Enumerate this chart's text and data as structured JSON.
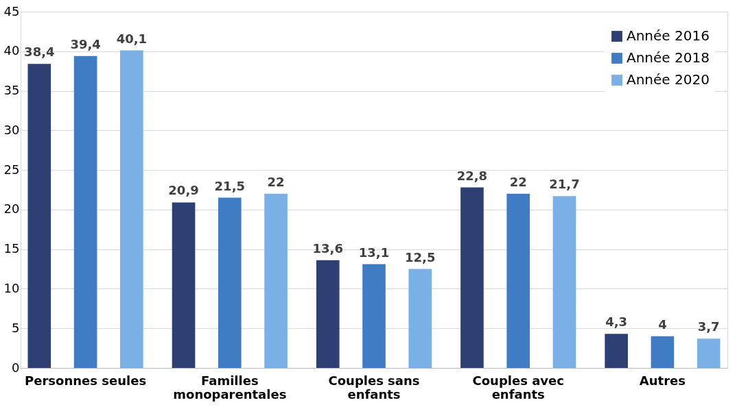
{
  "chart_data": {
    "type": "bar",
    "categories": [
      "Personnes seules",
      "Familles monoparentales",
      "Couples sans enfants",
      "Couples avec enfants",
      "Autres"
    ],
    "series": [
      {
        "name": "Année 2016",
        "color": "#2e3f73",
        "values": [
          38.4,
          20.9,
          13.6,
          22.8,
          4.3
        ],
        "value_labels": [
          "38,4",
          "20,9",
          "13,6",
          "22,8",
          "4,3"
        ]
      },
      {
        "name": "Année 2018",
        "color": "#3f7cc4",
        "values": [
          39.4,
          21.5,
          13.1,
          22,
          4
        ],
        "value_labels": [
          "39,4",
          "21,5",
          "13,1",
          "22",
          "4"
        ]
      },
      {
        "name": "Année 2020",
        "color": "#7ab0e6",
        "values": [
          40.1,
          22,
          12.5,
          21.7,
          3.7
        ],
        "value_labels": [
          "40,1",
          "22",
          "12,5",
          "21,7",
          "3,7"
        ]
      }
    ],
    "ylim": [
      0,
      45
    ],
    "yticks": [
      0,
      5,
      10,
      15,
      20,
      25,
      30,
      35,
      40,
      45
    ],
    "grid": "y",
    "legend": "top right"
  }
}
